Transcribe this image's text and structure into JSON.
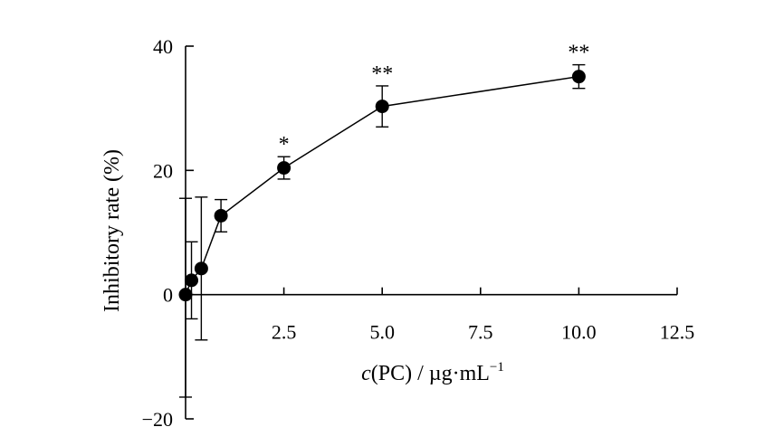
{
  "chart_data": {
    "type": "scatter",
    "title": "",
    "xlabel_parts": {
      "c": "c",
      "rest": "(PC) / µg·mL",
      "sup": "−1"
    },
    "ylabel": "Inhibitory rate (%)",
    "xlim": [
      0,
      12.5
    ],
    "ylim": [
      -20,
      40
    ],
    "xticks": [
      2.5,
      5.0,
      7.5,
      10.0,
      12.5
    ],
    "xtick_labels": [
      "2.5",
      "5.0",
      "7.5",
      "10.0",
      "12.5"
    ],
    "yticks": [
      -20,
      0,
      20,
      40
    ],
    "ytick_labels": [
      "−20",
      "0",
      "20",
      "40"
    ],
    "grid": false,
    "series": [
      {
        "points": [
          {
            "x": 0.0,
            "y": 0.0,
            "err_low": 16.5,
            "err_high": 15.5,
            "label": ""
          },
          {
            "x": 0.15,
            "y": 2.3,
            "err_low": 6.2,
            "err_high": 6.2,
            "label": ""
          },
          {
            "x": 0.4,
            "y": 4.2,
            "err_low": 11.5,
            "err_high": 11.5,
            "label": ""
          },
          {
            "x": 0.9,
            "y": 12.7,
            "err_low": 2.6,
            "err_high": 2.6,
            "label": ""
          },
          {
            "x": 2.5,
            "y": 20.4,
            "err_low": 1.8,
            "err_high": 1.8,
            "label": "*"
          },
          {
            "x": 5.0,
            "y": 30.3,
            "err_low": 3.3,
            "err_high": 3.3,
            "label": "**"
          },
          {
            "x": 10.0,
            "y": 35.1,
            "err_low": 1.9,
            "err_high": 1.9,
            "label": "**"
          }
        ]
      }
    ]
  }
}
